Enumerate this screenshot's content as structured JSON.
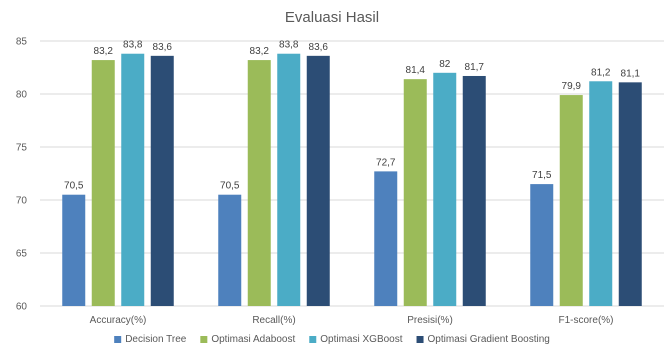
{
  "chart_data": {
    "type": "bar",
    "title": "Evaluasi Hasil",
    "categories": [
      "Accuracy(%)",
      "Recall(%)",
      "Presisi(%)",
      "F1-score(%)"
    ],
    "series": [
      {
        "name": "Decision Tree",
        "color": "#4e81bd",
        "values": [
          70.5,
          70.5,
          72.7,
          71.5
        ],
        "labels": [
          "70,5",
          "70,5",
          "72,7",
          "71,5"
        ]
      },
      {
        "name": "Optimasi Adaboost",
        "color": "#9bbb59",
        "values": [
          83.2,
          83.2,
          81.4,
          79.9
        ],
        "labels": [
          "83,2",
          "83,2",
          "81,4",
          "79,9"
        ]
      },
      {
        "name": "Optimasi XGBoost",
        "color": "#4bacc6",
        "values": [
          83.8,
          83.8,
          82,
          81.2
        ],
        "labels": [
          "83,8",
          "83,8",
          "82",
          "81,2"
        ]
      },
      {
        "name": "Optimasi Gradient Boosting",
        "color": "#2c4d75",
        "values": [
          83.6,
          83.6,
          81.7,
          81.1
        ],
        "labels": [
          "83,6",
          "83,6",
          "81,7",
          "81,1"
        ]
      }
    ],
    "ylim": [
      60,
      85
    ],
    "yticks": [
      60,
      65,
      70,
      75,
      80,
      85
    ],
    "grid": true,
    "legend_position": "bottom"
  }
}
